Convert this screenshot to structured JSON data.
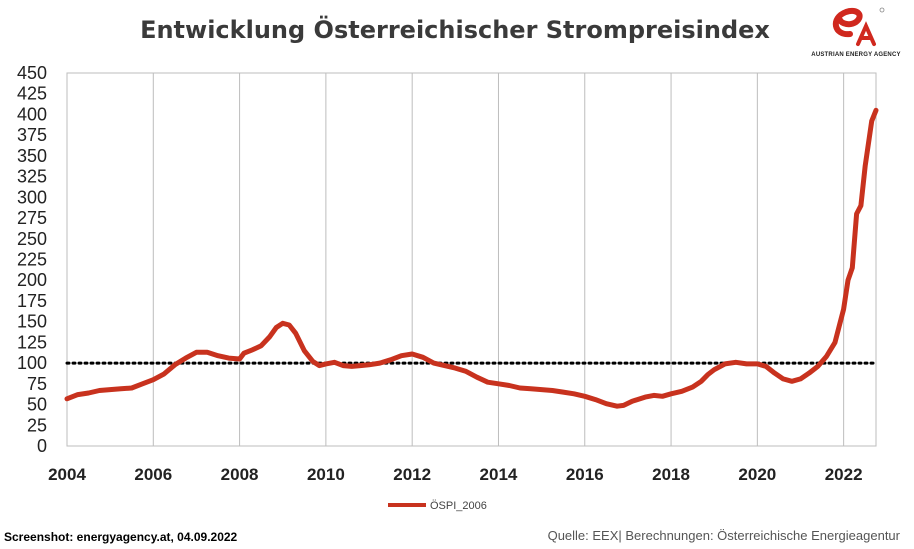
{
  "chart_data": {
    "type": "line",
    "title": "Entwicklung Österreichischer Strompreisindex",
    "xlabel": "",
    "ylabel": "",
    "xlim": [
      2004.0,
      2022.75
    ],
    "ylim": [
      0,
      450
    ],
    "yticks": [
      0,
      25,
      50,
      75,
      100,
      125,
      150,
      175,
      200,
      225,
      250,
      275,
      300,
      325,
      350,
      375,
      400,
      425,
      450
    ],
    "xticks": [
      2004,
      2006,
      2008,
      2010,
      2012,
      2014,
      2016,
      2018,
      2020,
      2022
    ],
    "grid": "vertical",
    "legend_position": "bottom-center",
    "reference_line": {
      "y": 100,
      "style": "dotted"
    },
    "series": [
      {
        "name": "ÖSPI_2006",
        "color": "#c8321e",
        "points": [
          [
            2004.0,
            57
          ],
          [
            2004.25,
            62
          ],
          [
            2004.5,
            64
          ],
          [
            2004.75,
            67
          ],
          [
            2005.0,
            68
          ],
          [
            2005.25,
            69
          ],
          [
            2005.5,
            70
          ],
          [
            2005.75,
            75
          ],
          [
            2006.0,
            80
          ],
          [
            2006.25,
            87
          ],
          [
            2006.5,
            98
          ],
          [
            2006.75,
            106
          ],
          [
            2007.0,
            113
          ],
          [
            2007.25,
            113
          ],
          [
            2007.5,
            109
          ],
          [
            2007.75,
            106
          ],
          [
            2008.0,
            105
          ],
          [
            2008.1,
            112
          ],
          [
            2008.3,
            116
          ],
          [
            2008.5,
            121
          ],
          [
            2008.7,
            132
          ],
          [
            2008.85,
            143
          ],
          [
            2009.0,
            148
          ],
          [
            2009.15,
            146
          ],
          [
            2009.3,
            136
          ],
          [
            2009.5,
            115
          ],
          [
            2009.7,
            102
          ],
          [
            2009.85,
            97
          ],
          [
            2010.0,
            99
          ],
          [
            2010.2,
            101
          ],
          [
            2010.4,
            97
          ],
          [
            2010.6,
            96
          ],
          [
            2010.8,
            97
          ],
          [
            2011.0,
            98
          ],
          [
            2011.25,
            100
          ],
          [
            2011.5,
            104
          ],
          [
            2011.75,
            109
          ],
          [
            2012.0,
            111
          ],
          [
            2012.25,
            107
          ],
          [
            2012.5,
            100
          ],
          [
            2012.75,
            97
          ],
          [
            2013.0,
            94
          ],
          [
            2013.25,
            90
          ],
          [
            2013.5,
            83
          ],
          [
            2013.75,
            77
          ],
          [
            2014.0,
            75
          ],
          [
            2014.25,
            73
          ],
          [
            2014.5,
            70
          ],
          [
            2014.75,
            69
          ],
          [
            2015.0,
            68
          ],
          [
            2015.25,
            67
          ],
          [
            2015.5,
            65
          ],
          [
            2015.75,
            63
          ],
          [
            2016.0,
            60
          ],
          [
            2016.25,
            56
          ],
          [
            2016.5,
            51
          ],
          [
            2016.75,
            48
          ],
          [
            2016.9,
            49
          ],
          [
            2017.1,
            54
          ],
          [
            2017.4,
            59
          ],
          [
            2017.6,
            61
          ],
          [
            2017.8,
            60
          ],
          [
            2018.0,
            63
          ],
          [
            2018.25,
            66
          ],
          [
            2018.5,
            71
          ],
          [
            2018.7,
            78
          ],
          [
            2018.85,
            86
          ],
          [
            2019.0,
            92
          ],
          [
            2019.25,
            99
          ],
          [
            2019.5,
            101
          ],
          [
            2019.75,
            99
          ],
          [
            2020.0,
            99
          ],
          [
            2020.2,
            96
          ],
          [
            2020.4,
            88
          ],
          [
            2020.6,
            81
          ],
          [
            2020.8,
            78
          ],
          [
            2021.0,
            81
          ],
          [
            2021.2,
            88
          ],
          [
            2021.4,
            96
          ],
          [
            2021.6,
            108
          ],
          [
            2021.8,
            125
          ],
          [
            2021.9,
            145
          ],
          [
            2022.0,
            165
          ],
          [
            2022.1,
            200
          ],
          [
            2022.2,
            215
          ],
          [
            2022.3,
            280
          ],
          [
            2022.4,
            290
          ],
          [
            2022.5,
            338
          ],
          [
            2022.65,
            392
          ],
          [
            2022.75,
            405
          ]
        ]
      }
    ],
    "legend": [
      "ÖSPI_2006"
    ]
  },
  "logo": {
    "text": "AUSTRIAN ENERGY AGENCY",
    "icon": "ea-logo-icon",
    "color": "#d0281e"
  },
  "footer": {
    "left": "Screenshot: energyagency.at, 04.09.2022",
    "right": "Quelle: EEX| Berechnungen: Österreichische Energieagentur"
  }
}
